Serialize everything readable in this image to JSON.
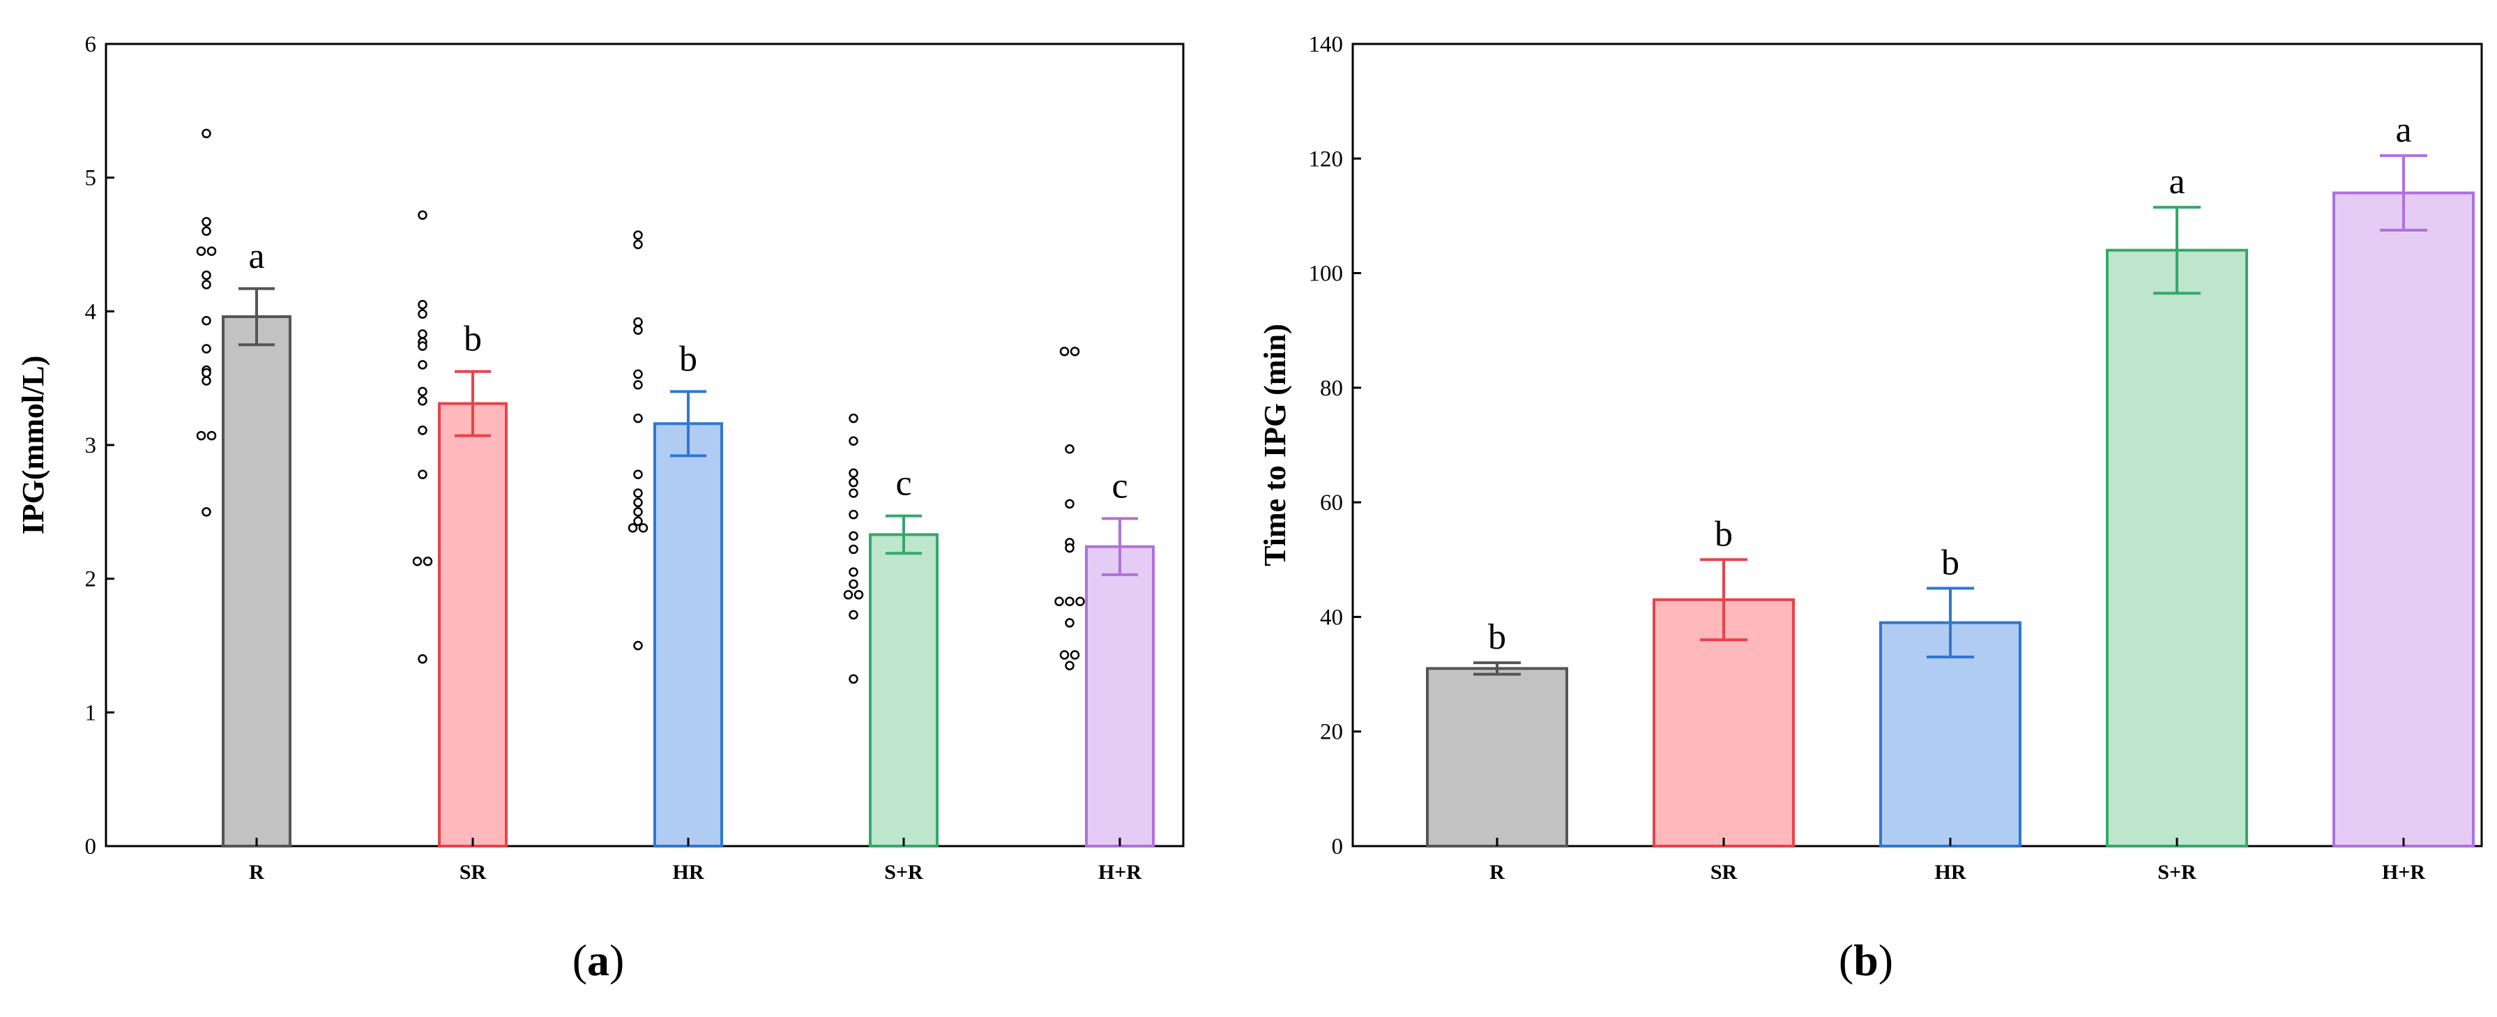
{
  "chart_data": [
    {
      "type": "bar",
      "panel_label": "a",
      "title": "",
      "xlabel": "",
      "ylabel": "IPG(mmol/L)",
      "ylim": [
        0,
        6
      ],
      "yticks": [
        0,
        1,
        2,
        3,
        4,
        5,
        6
      ],
      "grid": false,
      "categories": [
        "R",
        "SR",
        "HR",
        "S+R",
        "H+R"
      ],
      "values": [
        3.96,
        3.31,
        3.16,
        2.33,
        2.24
      ],
      "errors": [
        0.21,
        0.24,
        0.24,
        0.14,
        0.21
      ],
      "significance": [
        "a",
        "b",
        "b",
        "c",
        "c"
      ],
      "colors": {
        "fill": [
          "#c2c2c2",
          "#ffb8bb",
          "#b0ccf2",
          "#bde6cd",
          "#e4ccf5"
        ],
        "edge": [
          "#555555",
          "#e8424a",
          "#2f77d1",
          "#34a86a",
          "#b070de"
        ]
      },
      "points": [
        [
          5.33,
          4.67,
          4.6,
          4.45,
          4.45,
          4.27,
          4.2,
          3.93,
          3.72,
          3.56,
          3.54,
          3.48,
          3.07,
          3.07,
          2.5
        ],
        [
          4.72,
          4.05,
          3.98,
          3.83,
          3.77,
          3.74,
          3.6,
          3.4,
          3.33,
          3.11,
          2.78,
          2.13,
          2.13,
          1.4
        ],
        [
          4.57,
          4.5,
          3.92,
          3.86,
          3.53,
          3.45,
          3.2,
          2.78,
          2.64,
          2.57,
          2.5,
          2.43,
          2.38,
          2.38,
          1.5
        ],
        [
          3.2,
          3.03,
          2.79,
          2.72,
          2.64,
          2.48,
          2.32,
          2.22,
          2.05,
          1.96,
          1.88,
          1.88,
          1.73,
          1.25
        ],
        [
          3.7,
          3.7,
          2.97,
          2.56,
          2.27,
          2.23,
          1.83,
          1.83,
          1.83,
          1.67,
          1.43,
          1.43,
          1.35
        ]
      ]
    },
    {
      "type": "bar",
      "panel_label": "b",
      "title": "",
      "xlabel": "",
      "ylabel": "Time to IPG (min)",
      "ylim": [
        0,
        140
      ],
      "yticks": [
        0,
        20,
        40,
        60,
        80,
        100,
        120,
        140
      ],
      "grid": false,
      "categories": [
        "R",
        "SR",
        "HR",
        "S+R",
        "H+R"
      ],
      "values": [
        31,
        43,
        39,
        104,
        114
      ],
      "errors": [
        1,
        7,
        6,
        7.5,
        6.5
      ],
      "significance": [
        "b",
        "b",
        "b",
        "a",
        "a"
      ],
      "colors": {
        "fill": [
          "#c2c2c2",
          "#ffb8bb",
          "#b0ccf2",
          "#bde6cd",
          "#e4ccf5"
        ],
        "edge": [
          "#555555",
          "#e8424a",
          "#2f77d1",
          "#34a86a",
          "#b070de"
        ]
      }
    }
  ]
}
